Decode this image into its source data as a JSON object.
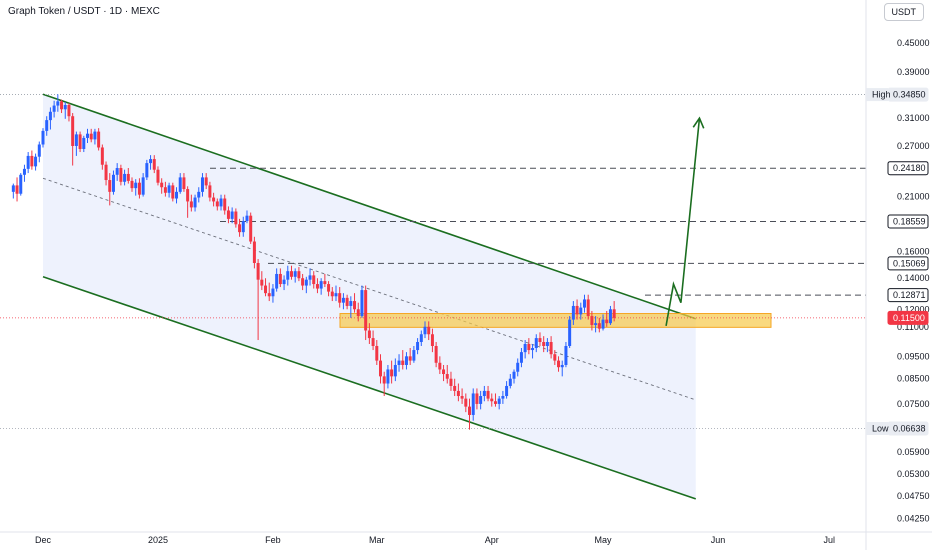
{
  "header": {
    "title": "Graph Token / USDT · 1D · MEXC",
    "currency": "USDT"
  },
  "colors": {
    "up": "#2962ff",
    "down": "#f23645",
    "channel_line": "#1b6e20",
    "channel_fill": "#e8eefc",
    "zone_fill": "#f7c948",
    "zone_border": "#f5a623",
    "current_price": "#f23645",
    "projection": "#1b6e20"
  },
  "chart_data": {
    "type": "candlestick",
    "symbol": "GRT/USDT",
    "timeframe": "1D",
    "exchange": "MEXC",
    "x_ticks": [
      "Dec",
      "2025",
      "Feb",
      "Mar",
      "Apr",
      "May",
      "Jun",
      "Jul"
    ],
    "y_ticks": [
      "0.45000",
      "0.39000",
      "0.31000",
      "0.27000",
      "0.21000",
      "0.16000",
      "0.14000",
      "0.12000",
      "0.11000",
      "0.09500",
      "0.08500",
      "0.07500",
      "0.05900",
      "0.05300",
      "0.04750",
      "0.04250"
    ],
    "y_scale": "log",
    "y_range": [
      0.0405,
      0.52
    ],
    "high": {
      "label": "High",
      "value": "0.34850"
    },
    "low": {
      "label": "Low",
      "value": "0.06638"
    },
    "current_price": "0.11500",
    "levels": [
      "0.24180",
      "0.18559",
      "0.15069",
      "0.12871"
    ],
    "support_zone": [
      0.1097,
      0.1175
    ],
    "channel": {
      "upper": [
        [
          "2024-12-01",
          0.349
        ],
        [
          "2025-05-26",
          0.1145
        ]
      ],
      "middle": [
        [
          "2024-12-01",
          0.23
        ],
        [
          "2025-05-26",
          0.0765
        ]
      ],
      "lower": [
        [
          "2024-12-01",
          0.141
        ],
        [
          "2025-05-26",
          0.0468
        ]
      ]
    },
    "projection": [
      [
        "2025-05-18",
        0.1105
      ],
      [
        "2025-05-20",
        0.136
      ],
      [
        "2025-05-22",
        0.124
      ],
      [
        "2025-05-27",
        0.31
      ]
    ],
    "ohlc_start_date": "2024-11-23",
    "ohlc": [
      [
        0.215,
        0.224,
        0.208,
        0.222
      ],
      [
        0.222,
        0.231,
        0.205,
        0.213
      ],
      [
        0.213,
        0.236,
        0.211,
        0.234
      ],
      [
        0.234,
        0.246,
        0.226,
        0.241
      ],
      [
        0.241,
        0.262,
        0.236,
        0.257
      ],
      [
        0.257,
        0.264,
        0.24,
        0.244
      ],
      [
        0.244,
        0.26,
        0.239,
        0.256
      ],
      [
        0.256,
        0.276,
        0.249,
        0.272
      ],
      [
        0.272,
        0.295,
        0.268,
        0.291
      ],
      [
        0.291,
        0.313,
        0.284,
        0.307
      ],
      [
        0.307,
        0.327,
        0.293,
        0.32
      ],
      [
        0.32,
        0.338,
        0.311,
        0.33
      ],
      [
        0.33,
        0.349,
        0.32,
        0.337
      ],
      [
        0.337,
        0.34,
        0.318,
        0.324
      ],
      [
        0.324,
        0.336,
        0.309,
        0.331
      ],
      [
        0.331,
        0.334,
        0.305,
        0.313
      ],
      [
        0.313,
        0.318,
        0.245,
        0.27
      ],
      [
        0.27,
        0.29,
        0.257,
        0.286
      ],
      [
        0.286,
        0.29,
        0.262,
        0.266
      ],
      [
        0.266,
        0.284,
        0.262,
        0.281
      ],
      [
        0.281,
        0.294,
        0.274,
        0.287
      ],
      [
        0.287,
        0.294,
        0.275,
        0.279
      ],
      [
        0.279,
        0.294,
        0.272,
        0.29
      ],
      [
        0.29,
        0.295,
        0.264,
        0.268
      ],
      [
        0.268,
        0.272,
        0.24,
        0.246
      ],
      [
        0.246,
        0.25,
        0.222,
        0.228
      ],
      [
        0.228,
        0.236,
        0.201,
        0.215
      ],
      [
        0.215,
        0.239,
        0.212,
        0.234
      ],
      [
        0.234,
        0.248,
        0.227,
        0.242
      ],
      [
        0.242,
        0.246,
        0.222,
        0.226
      ],
      [
        0.226,
        0.24,
        0.222,
        0.235
      ],
      [
        0.235,
        0.242,
        0.224,
        0.227
      ],
      [
        0.227,
        0.231,
        0.215,
        0.219
      ],
      [
        0.219,
        0.229,
        0.211,
        0.225
      ],
      [
        0.225,
        0.23,
        0.208,
        0.212
      ],
      [
        0.212,
        0.236,
        0.21,
        0.231
      ],
      [
        0.231,
        0.252,
        0.228,
        0.248
      ],
      [
        0.248,
        0.258,
        0.24,
        0.253
      ],
      [
        0.253,
        0.258,
        0.236,
        0.24
      ],
      [
        0.24,
        0.244,
        0.222,
        0.225
      ],
      [
        0.225,
        0.23,
        0.213,
        0.22
      ],
      [
        0.22,
        0.226,
        0.21,
        0.214
      ],
      [
        0.214,
        0.225,
        0.209,
        0.222
      ],
      [
        0.222,
        0.225,
        0.205,
        0.208
      ],
      [
        0.208,
        0.22,
        0.203,
        0.215
      ],
      [
        0.215,
        0.236,
        0.213,
        0.231
      ],
      [
        0.231,
        0.236,
        0.215,
        0.218
      ],
      [
        0.218,
        0.221,
        0.189,
        0.205
      ],
      [
        0.205,
        0.212,
        0.195,
        0.199
      ],
      [
        0.199,
        0.212,
        0.195,
        0.209
      ],
      [
        0.209,
        0.22,
        0.204,
        0.215
      ],
      [
        0.215,
        0.236,
        0.21,
        0.231
      ],
      [
        0.231,
        0.236,
        0.218,
        0.222
      ],
      [
        0.222,
        0.226,
        0.205,
        0.209
      ],
      [
        0.209,
        0.214,
        0.2,
        0.205
      ],
      [
        0.205,
        0.208,
        0.196,
        0.2
      ],
      [
        0.2,
        0.212,
        0.196,
        0.208
      ],
      [
        0.208,
        0.212,
        0.192,
        0.196
      ],
      [
        0.196,
        0.2,
        0.184,
        0.188
      ],
      [
        0.188,
        0.199,
        0.184,
        0.195
      ],
      [
        0.195,
        0.198,
        0.18,
        0.183
      ],
      [
        0.183,
        0.188,
        0.172,
        0.176
      ],
      [
        0.176,
        0.19,
        0.172,
        0.186
      ],
      [
        0.186,
        0.196,
        0.184,
        0.191
      ],
      [
        0.191,
        0.194,
        0.166,
        0.168
      ],
      [
        0.168,
        0.172,
        0.147,
        0.151
      ],
      [
        0.151,
        0.154,
        0.103,
        0.139
      ],
      [
        0.139,
        0.145,
        0.132,
        0.135
      ],
      [
        0.135,
        0.14,
        0.128,
        0.13
      ],
      [
        0.13,
        0.137,
        0.125,
        0.128
      ],
      [
        0.128,
        0.136,
        0.124,
        0.133
      ],
      [
        0.133,
        0.147,
        0.131,
        0.143
      ],
      [
        0.143,
        0.147,
        0.134,
        0.136
      ],
      [
        0.136,
        0.142,
        0.132,
        0.139
      ],
      [
        0.139,
        0.149,
        0.135,
        0.145
      ],
      [
        0.145,
        0.149,
        0.139,
        0.141
      ],
      [
        0.141,
        0.147,
        0.137,
        0.145
      ],
      [
        0.145,
        0.148,
        0.138,
        0.14
      ],
      [
        0.14,
        0.143,
        0.132,
        0.135
      ],
      [
        0.135,
        0.141,
        0.13,
        0.139
      ],
      [
        0.139,
        0.147,
        0.135,
        0.142
      ],
      [
        0.142,
        0.145,
        0.133,
        0.136
      ],
      [
        0.136,
        0.14,
        0.13,
        0.133
      ],
      [
        0.133,
        0.14,
        0.129,
        0.138
      ],
      [
        0.138,
        0.143,
        0.134,
        0.136
      ],
      [
        0.136,
        0.138,
        0.128,
        0.131
      ],
      [
        0.131,
        0.134,
        0.125,
        0.128
      ],
      [
        0.128,
        0.135,
        0.125,
        0.13
      ],
      [
        0.13,
        0.134,
        0.121,
        0.124
      ],
      [
        0.124,
        0.13,
        0.12,
        0.127
      ],
      [
        0.127,
        0.129,
        0.12,
        0.122
      ],
      [
        0.122,
        0.128,
        0.115,
        0.125
      ],
      [
        0.125,
        0.13,
        0.118,
        0.12
      ],
      [
        0.12,
        0.124,
        0.113,
        0.116
      ],
      [
        0.116,
        0.135,
        0.115,
        0.132
      ],
      [
        0.132,
        0.135,
        0.103,
        0.108
      ],
      [
        0.108,
        0.112,
        0.101,
        0.104
      ],
      [
        0.104,
        0.108,
        0.098,
        0.1
      ],
      [
        0.1,
        0.103,
        0.091,
        0.093
      ],
      [
        0.093,
        0.096,
        0.083,
        0.086
      ],
      [
        0.086,
        0.088,
        0.078,
        0.083
      ],
      [
        0.083,
        0.091,
        0.081,
        0.089
      ],
      [
        0.089,
        0.093,
        0.083,
        0.086
      ],
      [
        0.086,
        0.094,
        0.084,
        0.091
      ],
      [
        0.091,
        0.096,
        0.088,
        0.093
      ],
      [
        0.093,
        0.098,
        0.089,
        0.091
      ],
      [
        0.091,
        0.097,
        0.089,
        0.095
      ],
      [
        0.095,
        0.099,
        0.091,
        0.093
      ],
      [
        0.093,
        0.1,
        0.092,
        0.098
      ],
      [
        0.098,
        0.104,
        0.096,
        0.102
      ],
      [
        0.102,
        0.108,
        0.1,
        0.106
      ],
      [
        0.106,
        0.113,
        0.104,
        0.11
      ],
      [
        0.11,
        0.113,
        0.103,
        0.106
      ],
      [
        0.106,
        0.109,
        0.097,
        0.1
      ],
      [
        0.1,
        0.102,
        0.09,
        0.092
      ],
      [
        0.092,
        0.095,
        0.087,
        0.089
      ],
      [
        0.089,
        0.091,
        0.084,
        0.087
      ],
      [
        0.087,
        0.091,
        0.083,
        0.085
      ],
      [
        0.085,
        0.088,
        0.08,
        0.082
      ],
      [
        0.082,
        0.085,
        0.078,
        0.08
      ],
      [
        0.08,
        0.083,
        0.076,
        0.078
      ],
      [
        0.078,
        0.081,
        0.075,
        0.077
      ],
      [
        0.077,
        0.079,
        0.072,
        0.074
      ],
      [
        0.074,
        0.077,
        0.066,
        0.071
      ],
      [
        0.071,
        0.081,
        0.069,
        0.079
      ],
      [
        0.079,
        0.081,
        0.073,
        0.075
      ],
      [
        0.075,
        0.08,
        0.073,
        0.078
      ],
      [
        0.078,
        0.082,
        0.076,
        0.08
      ],
      [
        0.08,
        0.082,
        0.076,
        0.077
      ],
      [
        0.077,
        0.079,
        0.074,
        0.076
      ],
      [
        0.076,
        0.079,
        0.074,
        0.075
      ],
      [
        0.075,
        0.078,
        0.073,
        0.077
      ],
      [
        0.077,
        0.08,
        0.075,
        0.078
      ],
      [
        0.078,
        0.084,
        0.077,
        0.082
      ],
      [
        0.082,
        0.087,
        0.081,
        0.085
      ],
      [
        0.085,
        0.089,
        0.083,
        0.088
      ],
      [
        0.088,
        0.094,
        0.086,
        0.092
      ],
      [
        0.092,
        0.099,
        0.09,
        0.097
      ],
      [
        0.097,
        0.103,
        0.094,
        0.101
      ],
      [
        0.101,
        0.104,
        0.096,
        0.098
      ],
      [
        0.098,
        0.101,
        0.094,
        0.099
      ],
      [
        0.099,
        0.106,
        0.097,
        0.104
      ],
      [
        0.104,
        0.107,
        0.1,
        0.102
      ],
      [
        0.102,
        0.105,
        0.097,
        0.1
      ],
      [
        0.1,
        0.104,
        0.097,
        0.102
      ],
      [
        0.102,
        0.105,
        0.094,
        0.096
      ],
      [
        0.096,
        0.098,
        0.091,
        0.093
      ],
      [
        0.093,
        0.095,
        0.088,
        0.09
      ],
      [
        0.09,
        0.093,
        0.086,
        0.091
      ],
      [
        0.091,
        0.102,
        0.09,
        0.1
      ],
      [
        0.1,
        0.116,
        0.099,
        0.114
      ],
      [
        0.114,
        0.125,
        0.111,
        0.122
      ],
      [
        0.122,
        0.126,
        0.114,
        0.117
      ],
      [
        0.117,
        0.124,
        0.114,
        0.121
      ],
      [
        0.121,
        0.129,
        0.118,
        0.126
      ],
      [
        0.126,
        0.129,
        0.114,
        0.116
      ],
      [
        0.116,
        0.119,
        0.108,
        0.111
      ],
      [
        0.111,
        0.116,
        0.107,
        0.112
      ],
      [
        0.112,
        0.115,
        0.107,
        0.109
      ],
      [
        0.109,
        0.117,
        0.108,
        0.114
      ],
      [
        0.114,
        0.119,
        0.11,
        0.112
      ],
      [
        0.112,
        0.122,
        0.111,
        0.12
      ],
      [
        0.12,
        0.125,
        0.113,
        0.115
      ]
    ]
  },
  "axis": {
    "x_ticks": [
      {
        "label": "Dec",
        "date": "2024-12-01"
      },
      {
        "label": "2025",
        "date": "2025-01-01"
      },
      {
        "label": "Feb",
        "date": "2025-02-01"
      },
      {
        "label": "Mar",
        "date": "2025-03-01"
      },
      {
        "label": "Apr",
        "date": "2025-04-01"
      },
      {
        "label": "May",
        "date": "2025-05-01"
      },
      {
        "label": "Jun",
        "date": "2025-06-01"
      },
      {
        "label": "Jul",
        "date": "2025-07-01"
      }
    ],
    "y_ticks": [
      "0.45000",
      "0.39000",
      "0.31000",
      "0.27000",
      "0.21000",
      "0.16000",
      "0.14000",
      "0.12000",
      "0.11000",
      "0.09500",
      "0.08500",
      "0.07500",
      "0.05900",
      "0.05300",
      "0.04750",
      "0.04250"
    ]
  }
}
